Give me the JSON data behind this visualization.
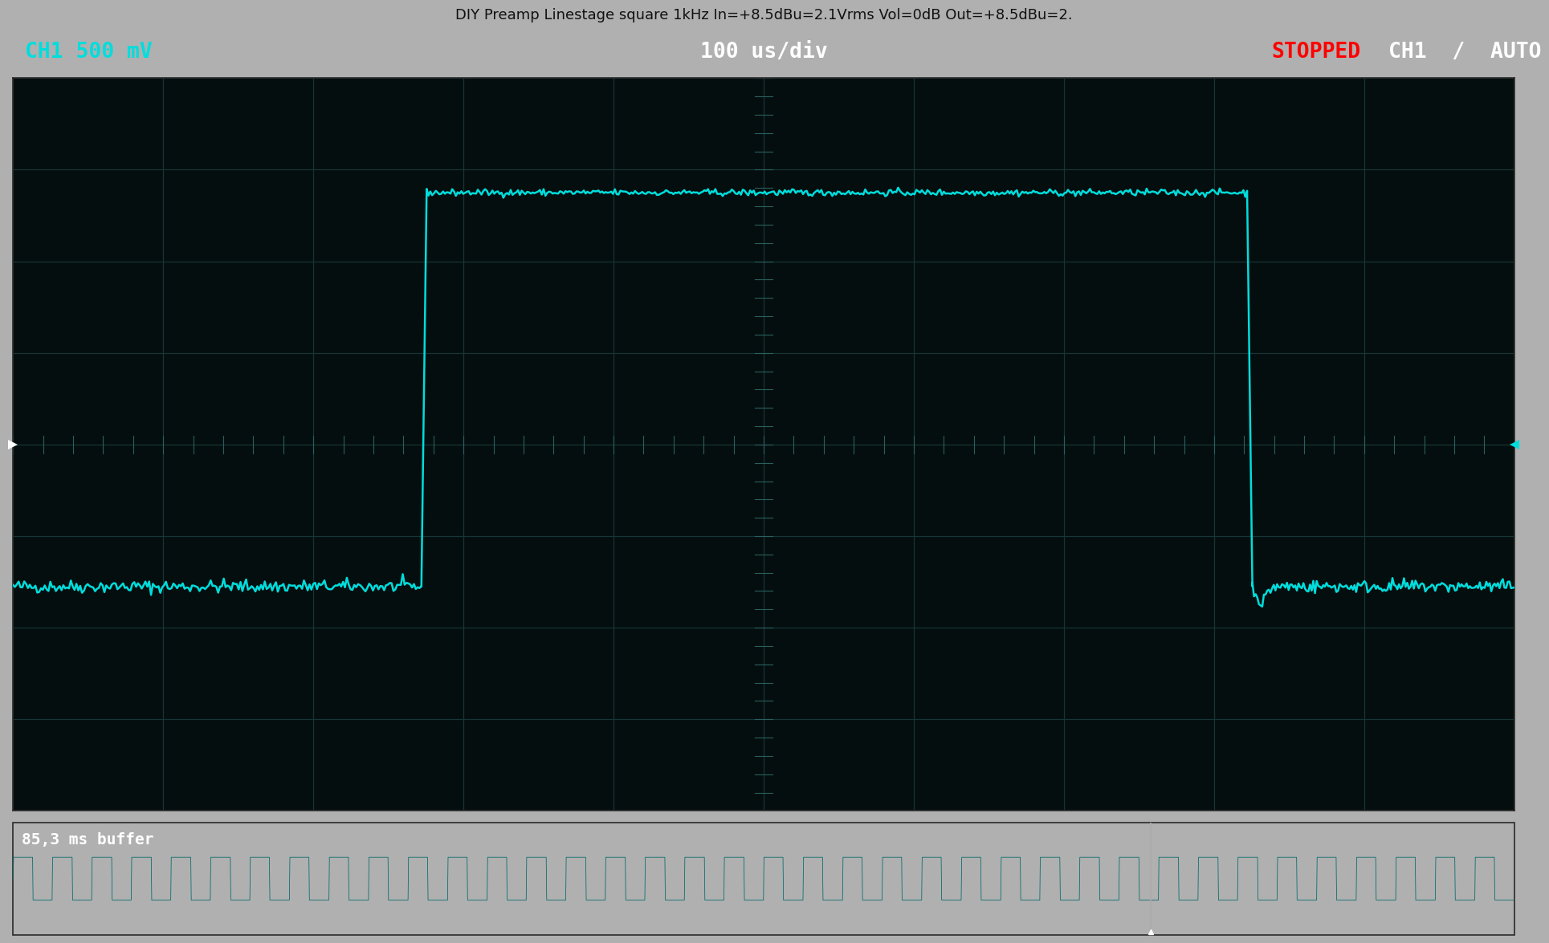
{
  "title": "DIY Preamp Linestage square 1kHz In=+8.5dBu=2.1Vrms Vol=0dB Out=+8.5dBu=2.",
  "bg_color": "#050e0e",
  "outer_bg": "#b0b0b0",
  "grid_color": "#1a3a3a",
  "trace_color": "#00dddd",
  "ch1_label": "CH1 500 mV",
  "time_label": "100 us/div",
  "status_label": "STOPPED",
  "right_label": "CH1  /  AUTO",
  "buffer_label": "85,3 ms buffer",
  "num_hdivs": 10,
  "num_vdivs": 8,
  "ylim": [
    -4,
    4
  ],
  "xlim": [
    0,
    10
  ],
  "square_high": 2.75,
  "square_low": -1.55,
  "rise_x1": 2.72,
  "rise_x2": 8.22,
  "noise_amplitude": 0.035,
  "trigger_y": 0.0,
  "mini_trace_color": "#005555",
  "header_bg": "#0a0a0a"
}
